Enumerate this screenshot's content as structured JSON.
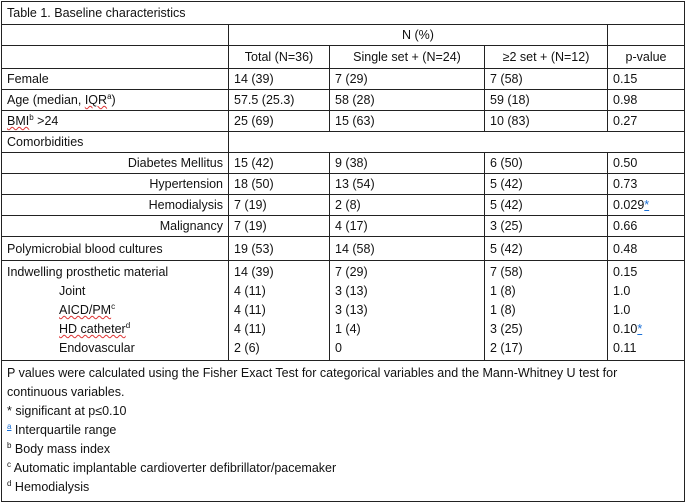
{
  "title": "Table 1.  Baseline characteristics",
  "group_header": "N (%)",
  "columns": [
    "Total (N=36)",
    "Single set + (N=24)",
    "≥2 set + (N=12)",
    "p-value"
  ],
  "rows": {
    "female": {
      "label": "Female",
      "values": [
        "14 (39)",
        "7 (29)",
        "7 (58)",
        "0.15"
      ]
    },
    "age": {
      "label": "Age (median, ",
      "label_abbr": "IQR",
      "label_sup": "a",
      "label_end": ")",
      "values": [
        "57.5 (25.3)",
        "58 (28)",
        "59 (18)",
        "0.98"
      ]
    },
    "bmi": {
      "label_abbr": "BMI",
      "label_sup": "b",
      "label_end": " >24",
      "values": [
        "25 (69)",
        "15 (63)",
        "10 (83)",
        "0.27"
      ]
    },
    "comorbidities": {
      "label": "Comorbidities"
    },
    "diabetes": {
      "label": "Diabetes Mellitus",
      "values": [
        "15 (42)",
        "9 (38)",
        "6 (50)",
        "0.50"
      ]
    },
    "hypertension": {
      "label": "Hypertension",
      "values": [
        "18 (50)",
        "13 (54)",
        "5 (42)",
        "0.73"
      ]
    },
    "hemodialysis": {
      "label": "Hemodialysis",
      "values": [
        "7 (19)",
        "2 (8)",
        "5 (42)",
        "0.029"
      ],
      "star": "*"
    },
    "malignancy": {
      "label": "Malignancy",
      "values": [
        "7 (19)",
        "4 (17)",
        "3 (25)",
        "0.66"
      ]
    },
    "polymicrobial": {
      "label": "Polymicrobial blood cultures",
      "values": [
        "19 (53)",
        "14 (58)",
        "5 (42)",
        "0.48"
      ]
    },
    "indwelling": {
      "label": "Indwelling prosthetic material",
      "values": [
        "14 (39)",
        "7 (29)",
        "7 (58)",
        "0.15"
      ]
    },
    "joint": {
      "label": "Joint",
      "values": [
        "4 (11)",
        "3 (13)",
        "1 (8)",
        "1.0"
      ]
    },
    "aicd": {
      "label": "AICD/PM",
      "label_sup": "c",
      "values": [
        "4 (11)",
        "3 (13)",
        "1 (8)",
        "1.0"
      ]
    },
    "hd_catheter": {
      "label": "HD catheter",
      "label_sup": "d",
      "values": [
        "4 (11)",
        "1 (4)",
        "3 (25)",
        "0.10"
      ],
      "star": "*"
    },
    "endovascular": {
      "label": "Endovascular",
      "values": [
        "2 (6)",
        "0",
        "2 (17)",
        "0.11"
      ]
    }
  },
  "footnotes": {
    "methods": "P values were calculated using the Fisher Exact Test for categorical variables and the Mann-Whitney U test for continuous variables.",
    "significance": "* significant at p≤0.10",
    "a": {
      "mark": "a",
      "text": " Interquartile range"
    },
    "b": {
      "mark": "b",
      "text": " Body mass index"
    },
    "c": {
      "mark": "c",
      "text": " Automatic implantable cardioverter defibrillator/pacemaker"
    },
    "d": {
      "mark": "d",
      "text": " Hemodialysis"
    }
  },
  "colors": {
    "star_link": "#1a6fd6",
    "spellcheck": "#dd3333"
  }
}
